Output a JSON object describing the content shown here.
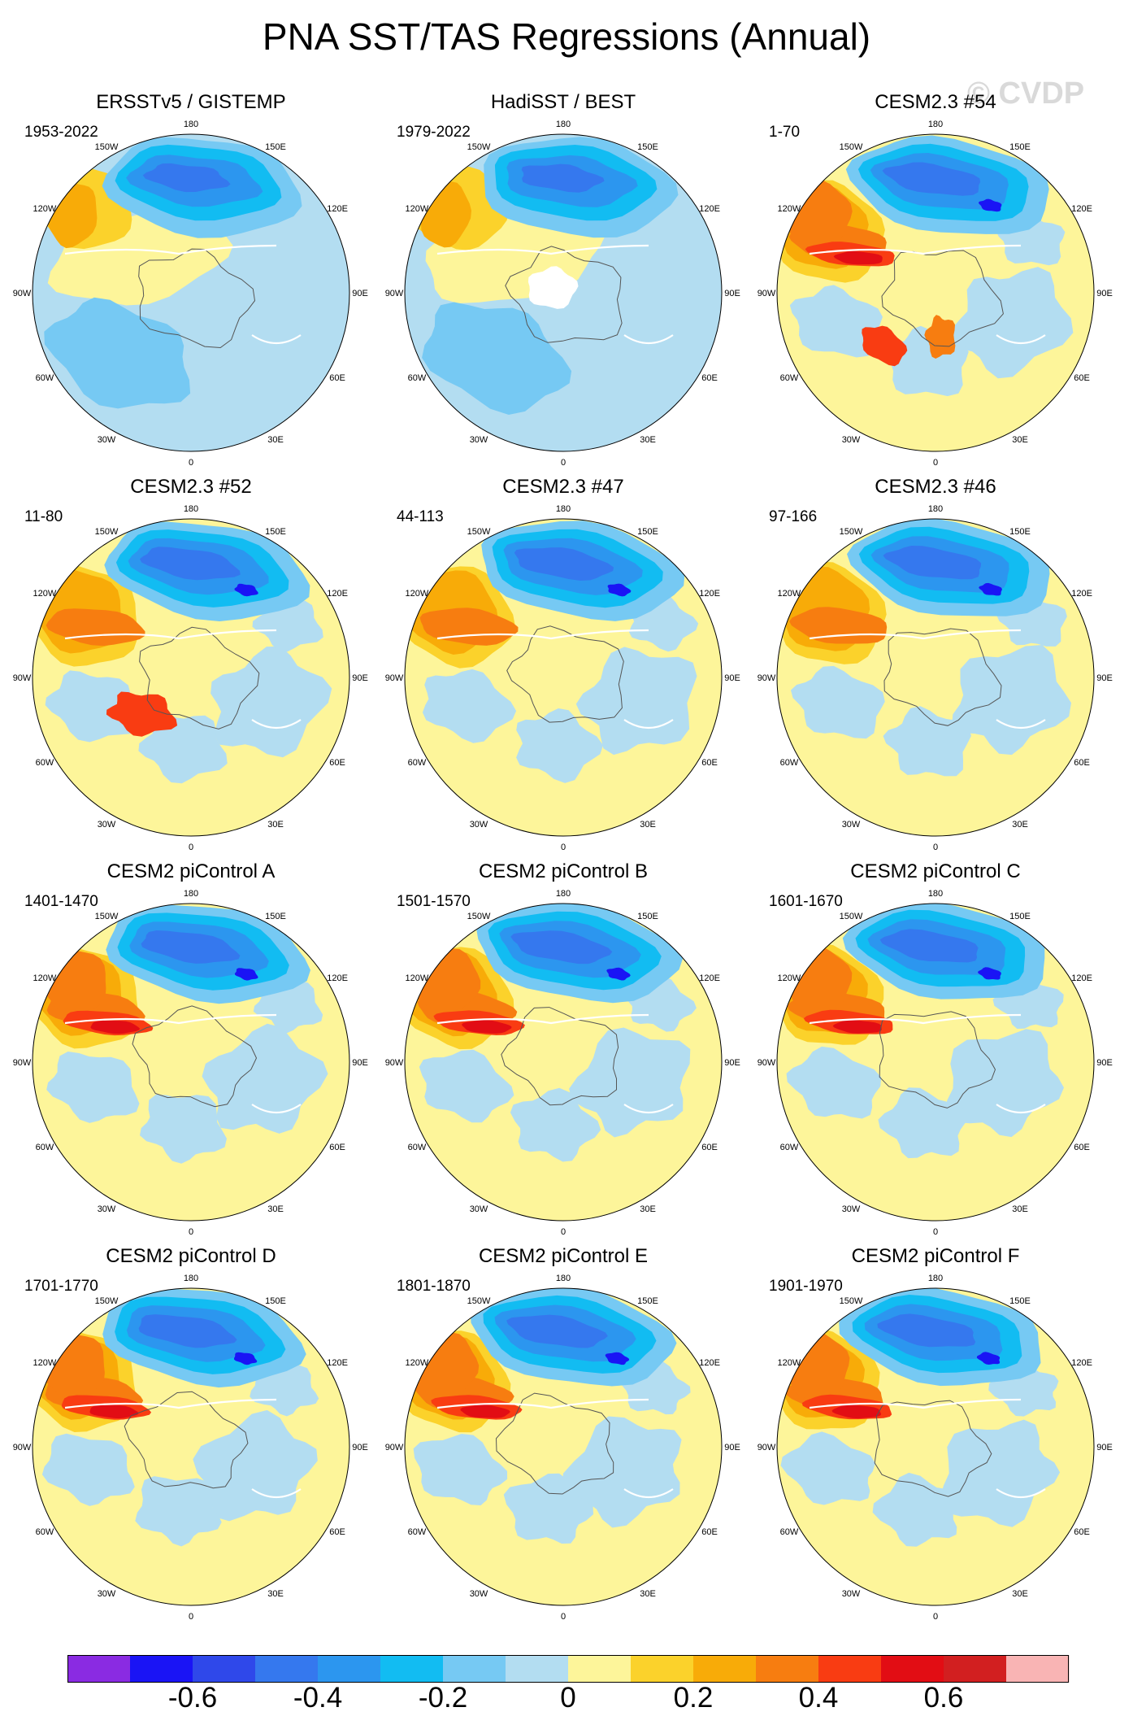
{
  "title": "PNA SST/TAS Regressions (Annual)",
  "watermark": "© CVDP",
  "lon_labels": [
    "180",
    "150E",
    "120E",
    "90E",
    "60E",
    "30E",
    "0",
    "30W",
    "60W",
    "90W",
    "120W",
    "150W"
  ],
  "panels": [
    {
      "title": "ERSSTv5 / GISTEMP",
      "years": "1953-2022",
      "mode": "obs1"
    },
    {
      "title": "HadiSST / BEST",
      "years": "1979-2022",
      "mode": "obs2"
    },
    {
      "title": "CESM2.3 #54",
      "years": "1-70",
      "mode": "m_warm"
    },
    {
      "title": "CESM2.3 #52",
      "years": "11-80",
      "mode": "m_mid"
    },
    {
      "title": "CESM2.3 #47",
      "years": "44-113",
      "mode": "m_mid"
    },
    {
      "title": "CESM2.3 #46",
      "years": "97-166",
      "mode": "m_mid"
    },
    {
      "title": "CESM2 piControl A",
      "years": "1401-1470",
      "mode": "m_strong"
    },
    {
      "title": "CESM2 piControl B",
      "years": "1501-1570",
      "mode": "m_strong"
    },
    {
      "title": "CESM2 piControl C",
      "years": "1601-1670",
      "mode": "m_strong"
    },
    {
      "title": "CESM2 piControl D",
      "years": "1701-1770",
      "mode": "m_strong"
    },
    {
      "title": "CESM2 piControl E",
      "years": "1801-1870",
      "mode": "m_strong"
    },
    {
      "title": "CESM2 piControl F",
      "years": "1901-1970",
      "mode": "m_strong"
    }
  ],
  "colorbar": {
    "colors": [
      "#8a2be2",
      "#1a14f5",
      "#2f48ea",
      "#3578ee",
      "#2c96ef",
      "#12bcf2",
      "#76c9f3",
      "#b3ddf1",
      "#fdf59a",
      "#fbd22b",
      "#f8ab08",
      "#f77d10",
      "#f93c12",
      "#e20d14",
      "#d21f20",
      "#f9b4b4"
    ],
    "labels": [
      "-0.6",
      "-0.4",
      "-0.2",
      "0",
      "0.2",
      "0.4",
      "0.6"
    ]
  }
}
